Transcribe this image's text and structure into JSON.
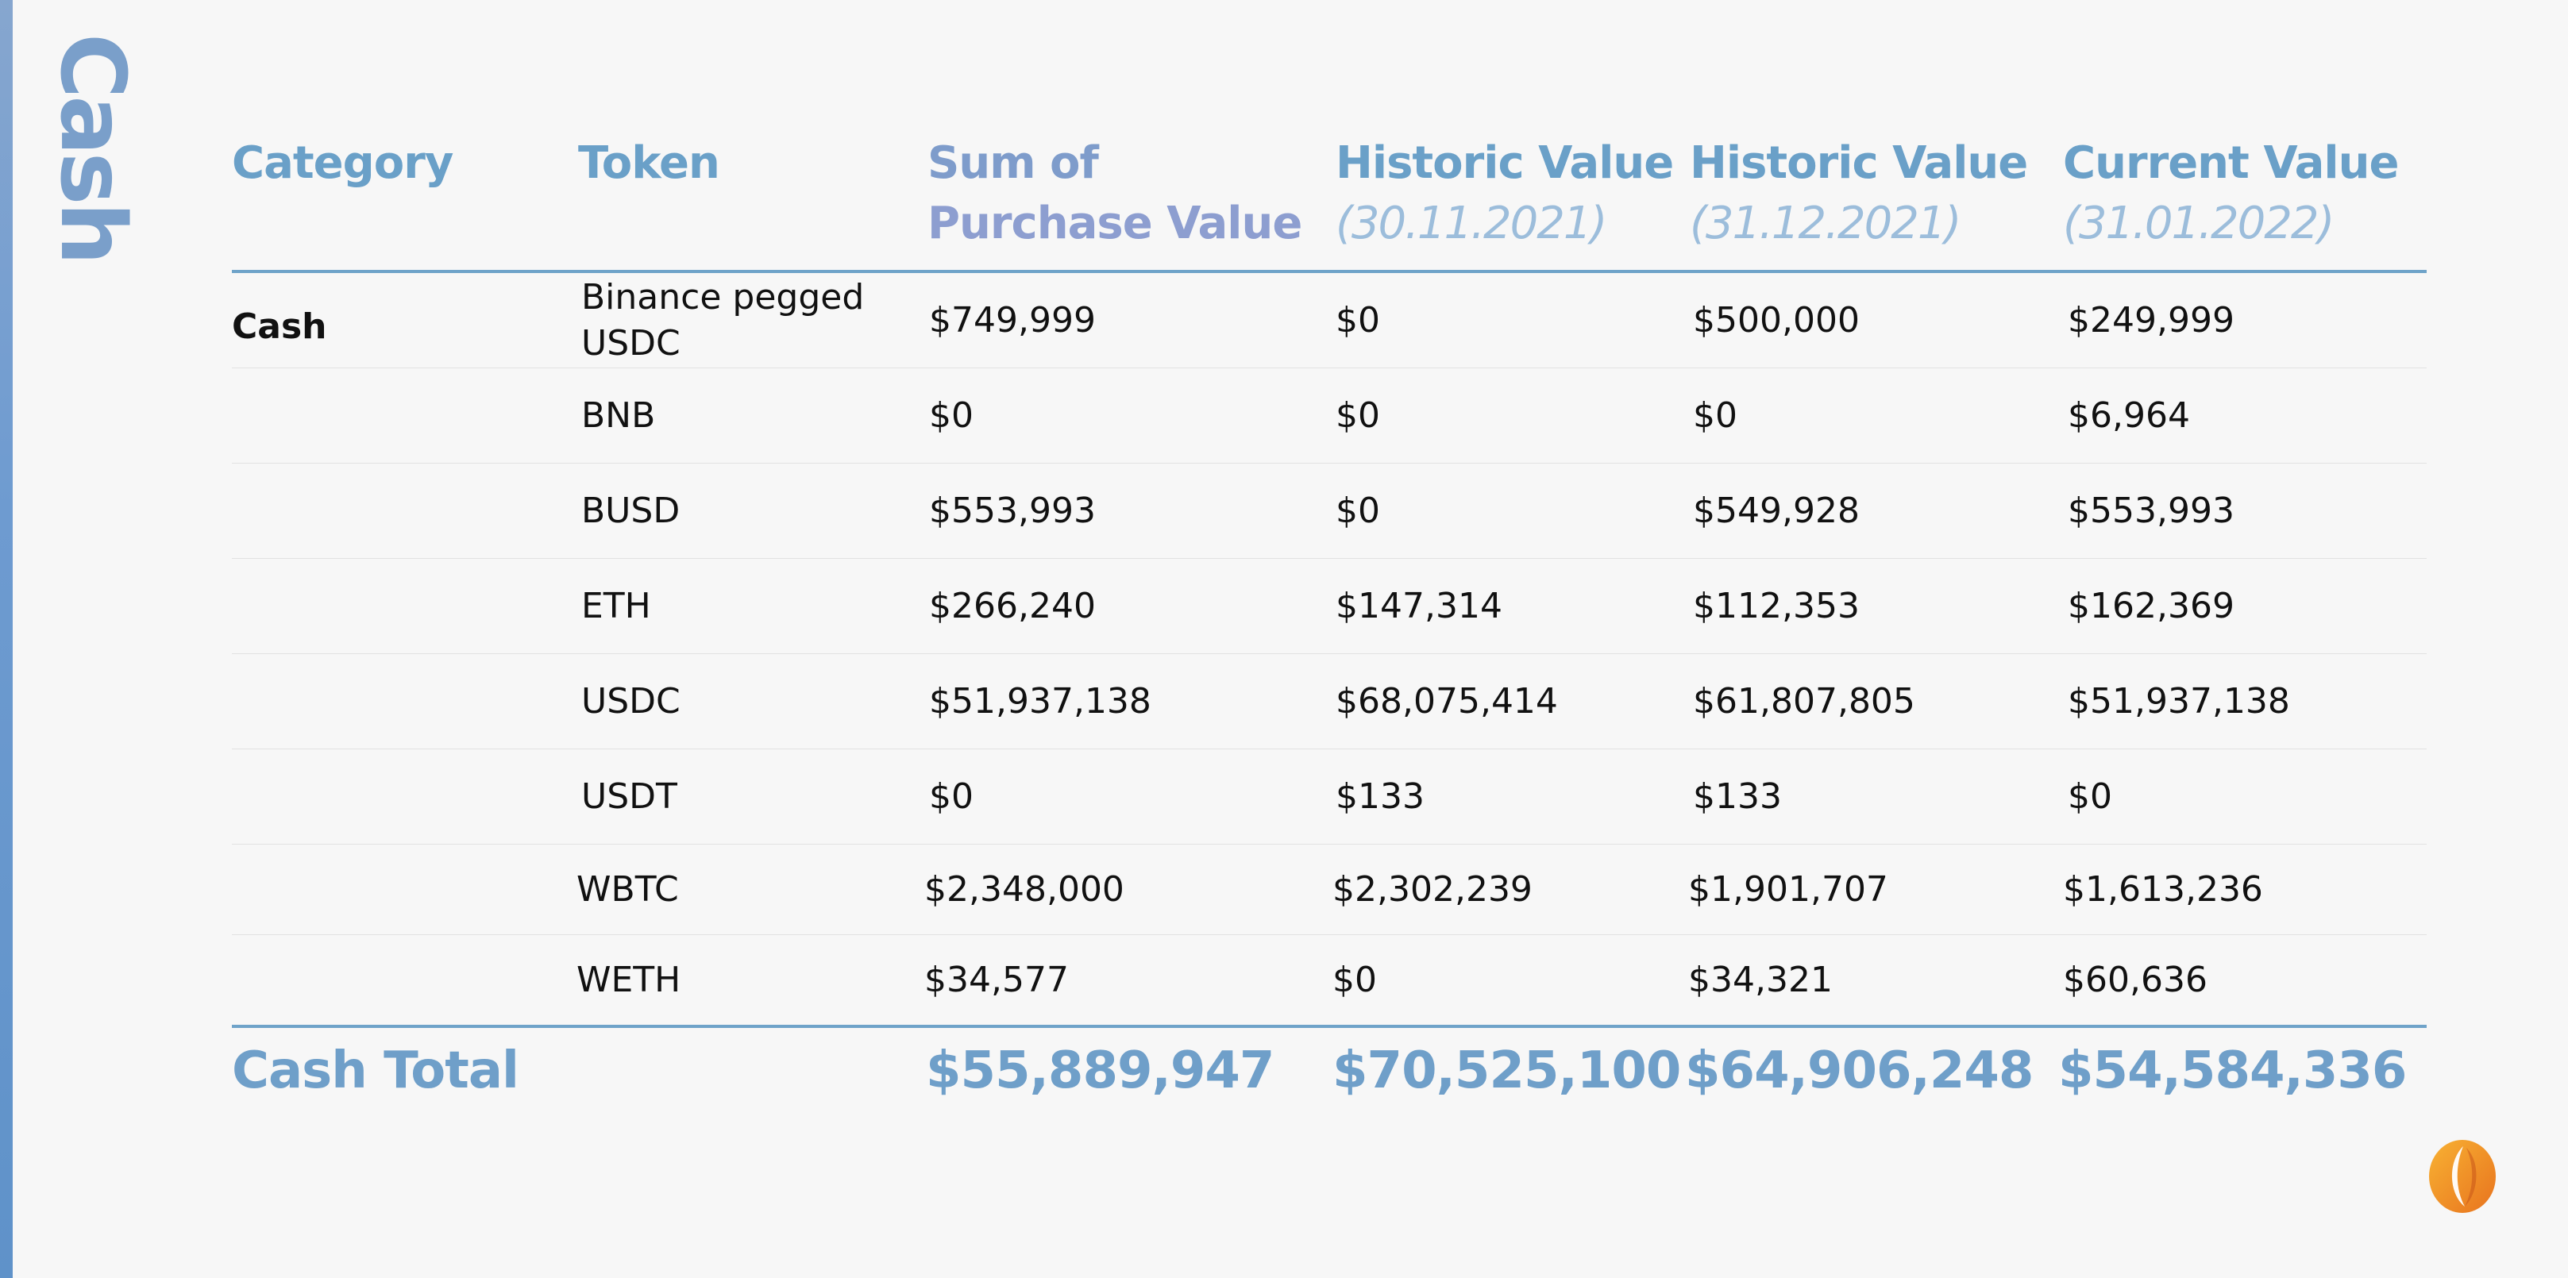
{
  "side_title": "Cash",
  "table": {
    "headers": {
      "category": "Category",
      "token": "Token",
      "purchase_line1": "Sum of",
      "purchase_line2": "Purchase Value",
      "hist1_title": "Historic Value",
      "hist1_date": "(30.11.2021)",
      "hist2_title": "Historic Value",
      "hist2_date": "(31.12.2021)",
      "current_title": "Current Value",
      "current_date": "(31.01.2022)"
    },
    "rows": [
      {
        "category": "Cash",
        "token": "Binance pegged USDC",
        "purchase": "$749,999",
        "hist1": "$0",
        "hist2": "$500,000",
        "current": "$249,999"
      },
      {
        "category": "",
        "token": "BNB",
        "purchase": "$0",
        "hist1": "$0",
        "hist2": "$0",
        "current": "$6,964"
      },
      {
        "category": "",
        "token": "BUSD",
        "purchase": "$553,993",
        "hist1": "$0",
        "hist2": "$549,928",
        "current": "$553,993"
      },
      {
        "category": "",
        "token": "ETH",
        "purchase": "$266,240",
        "hist1": "$147,314",
        "hist2": "$112,353",
        "current": "$162,369"
      },
      {
        "category": "",
        "token": "USDC",
        "purchase": "$51,937,138",
        "hist1": "$68,075,414",
        "hist2": "$61,807,805",
        "current": "$51,937,138"
      },
      {
        "category": "",
        "token": "USDT",
        "purchase": "$0",
        "hist1": "$133",
        "hist2": "$133",
        "current": "$0"
      },
      {
        "category": "",
        "token": "WBTC",
        "purchase": "$2,348,000",
        "hist1": "$2,302,239",
        "hist2": "$1,901,707",
        "current": "$1,613,236"
      },
      {
        "category": "",
        "token": "WETH",
        "purchase": "$34,577",
        "hist1": "$0",
        "hist2": "$34,321",
        "current": "$60,636"
      }
    ],
    "total": {
      "label": "Cash Total",
      "purchase": "$55,889,947",
      "hist1": "$70,525,100",
      "hist2": "$64,906,248",
      "current": "$54,584,336"
    }
  },
  "logo": {
    "icon": "brand-logo-icon",
    "colors": [
      "#f5a623",
      "#e8731e"
    ]
  }
}
